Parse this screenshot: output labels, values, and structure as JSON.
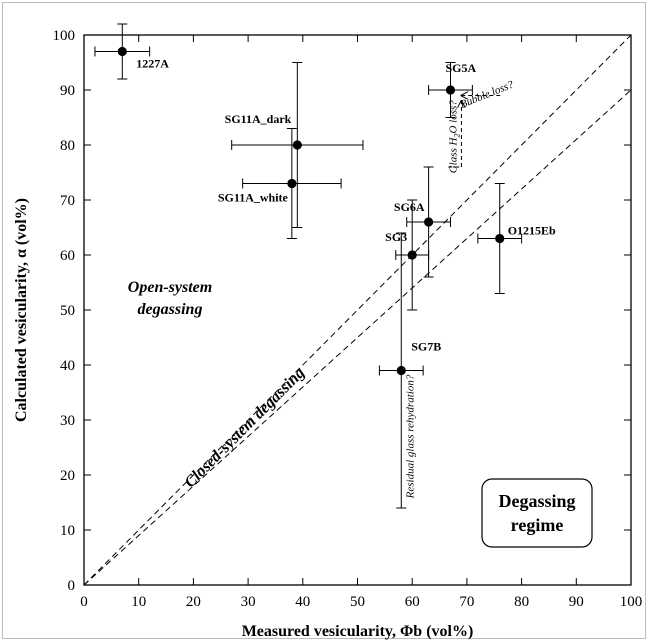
{
  "chart_data": {
    "type": "scatter",
    "title": "",
    "xlabel": "Measured vesicularity, Φb (vol%)",
    "ylabel": "Calculated vesicularity, α (vol%)",
    "xlim": [
      0,
      100
    ],
    "ylim": [
      0,
      100
    ],
    "x_ticks": [
      "0",
      "10",
      "20",
      "30",
      "40",
      "50",
      "60",
      "70",
      "80",
      "90",
      "100"
    ],
    "y_ticks": [
      "0",
      "10",
      "20",
      "30",
      "40",
      "50",
      "60",
      "70",
      "80",
      "90",
      "100"
    ],
    "grid": false,
    "reference_lines": [
      {
        "kind": "dashed",
        "from": [
          0,
          0
        ],
        "to": [
          100,
          90
        ]
      },
      {
        "kind": "dashed",
        "from": [
          0,
          0
        ],
        "to": [
          100,
          100
        ]
      }
    ],
    "points": [
      {
        "label": "1227A",
        "x": 7,
        "y": 97,
        "xerr": [
          2,
          12
        ],
        "yerr": [
          92,
          102
        ]
      },
      {
        "label": "SG11A_dark",
        "x": 39,
        "y": 80,
        "xerr": [
          27,
          51
        ],
        "yerr": [
          65,
          95
        ]
      },
      {
        "label": "SG11A_white",
        "x": 38,
        "y": 73,
        "xerr": [
          29,
          47
        ],
        "yerr": [
          63,
          83
        ]
      },
      {
        "label": "SG5A",
        "x": 67,
        "y": 90,
        "xerr": [
          63,
          71
        ],
        "yerr": [
          85,
          95
        ]
      },
      {
        "label": "SG6A",
        "x": 63,
        "y": 66,
        "xerr": [
          59,
          67
        ],
        "yerr": [
          56,
          76
        ]
      },
      {
        "label": "SG3",
        "x": 60,
        "y": 60,
        "xerr": [
          57,
          63
        ],
        "yerr": [
          50,
          70
        ]
      },
      {
        "label": "O1215Eb",
        "x": 76,
        "y": 63,
        "xerr": [
          72,
          80
        ],
        "yerr": [
          53,
          73
        ]
      },
      {
        "label": "SG7B",
        "x": 58,
        "y": 39,
        "xerr": [
          54,
          62
        ],
        "yerr": [
          14,
          64
        ]
      }
    ],
    "annotations": {
      "open_system": [
        "Open-system",
        "degassing"
      ],
      "closed_system": "Closed-system degassing",
      "residual": "Residual glass rehydration?",
      "bubble_loss": "Bubble loss?",
      "glass_loss": "Glass H2O loss?",
      "regime": [
        "Degassing",
        "regime"
      ]
    },
    "arrows": {
      "bubble_loss": {
        "from": [
          75,
          89
        ],
        "to": [
          69,
          89
        ]
      },
      "glass_loss": {
        "from": [
          69,
          76
        ],
        "to": [
          69,
          88
        ]
      }
    }
  }
}
